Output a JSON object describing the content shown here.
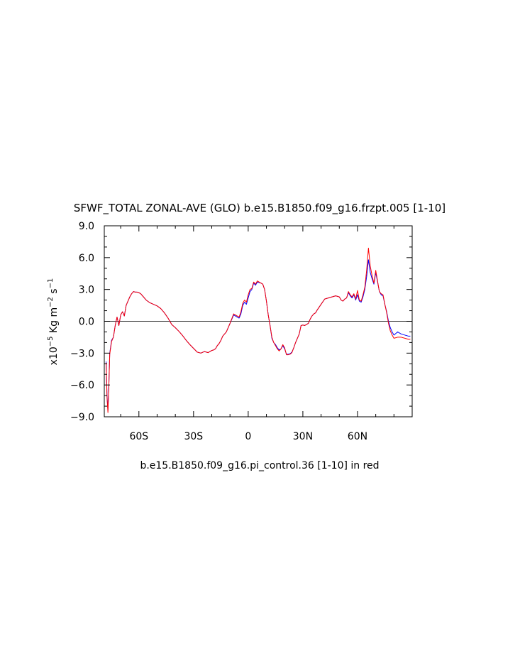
{
  "chart_data": {
    "type": "line",
    "title": "SFWF_TOTAL ZONAL-AVE (GLO) b.e15.B1850.f09_g16.frzpt.005 [1-10]",
    "xlabel": "b.e15.B1850.f09_g16.pi_control.36 [1-10] in red",
    "ylabel": "x10^-5 Kg m^-2 s^-1",
    "ylabel_parts": {
      "pre": "x10",
      "exp1": "−5",
      "mid1": " Kg m",
      "exp2": "−2",
      "mid2": " s",
      "exp3": "−1"
    },
    "xlim": [
      -79,
      90
    ],
    "ylim": [
      -9.0,
      9.0
    ],
    "x_ticks": [
      {
        "value": -60,
        "label": "60S"
      },
      {
        "value": -30,
        "label": "30S"
      },
      {
        "value": 0,
        "label": "0"
      },
      {
        "value": 30,
        "label": "30N"
      },
      {
        "value": 60,
        "label": "60N"
      }
    ],
    "y_ticks": [
      {
        "value": 9.0,
        "label": "9.0"
      },
      {
        "value": 6.0,
        "label": "6.0"
      },
      {
        "value": 3.0,
        "label": "3.0"
      },
      {
        "value": 0.0,
        "label": "0.0"
      },
      {
        "value": -3.0,
        "label": "−3.0"
      },
      {
        "value": -6.0,
        "label": "−6.0"
      },
      {
        "value": -9.0,
        "label": "−9.0"
      }
    ],
    "reference_line": 0.0,
    "series": [
      {
        "color": "#0000ff",
        "x": [
          -78,
          -77.5,
          -77,
          -76.5,
          -76,
          -75,
          -74,
          -73,
          -72,
          -71,
          -70,
          -69,
          -68,
          -67,
          -66,
          -65,
          -64,
          -63,
          -62,
          -61,
          -60,
          -59,
          -58,
          -56,
          -54,
          -52,
          -50,
          -48,
          -46,
          -44,
          -42,
          -40,
          -38,
          -36,
          -34,
          -32,
          -30,
          -28,
          -26,
          -24,
          -22,
          -20,
          -19,
          -18,
          -17,
          -16,
          -15,
          -14,
          -12,
          -10,
          -8,
          -6,
          -5,
          -4,
          -3,
          -2,
          -1,
          0,
          1,
          2,
          3,
          4,
          5,
          6,
          7,
          8,
          9,
          10,
          11,
          12,
          13,
          14,
          15,
          16,
          17,
          18,
          19,
          20,
          21,
          22,
          23,
          24,
          25,
          26,
          27,
          28,
          29,
          30,
          31,
          32,
          33,
          34,
          35,
          36,
          37,
          38,
          40,
          42,
          44,
          46,
          48,
          50,
          51,
          52,
          53,
          54,
          55,
          56,
          57,
          58,
          59,
          60,
          61,
          62,
          63,
          64,
          65,
          66,
          67,
          68,
          69,
          70,
          71,
          72,
          73,
          74,
          75,
          76,
          77,
          78,
          79,
          80,
          82,
          84,
          86,
          88,
          89
        ],
        "y": [
          -3.8,
          -7.0,
          -8.4,
          -6.0,
          -3.0,
          -1.8,
          -1.5,
          -0.4,
          0.4,
          -0.4,
          0.6,
          0.9,
          0.5,
          1.5,
          1.9,
          2.3,
          2.6,
          2.8,
          2.75,
          2.75,
          2.7,
          2.6,
          2.4,
          2.0,
          1.75,
          1.6,
          1.45,
          1.2,
          0.8,
          0.3,
          -0.3,
          -0.6,
          -0.95,
          -1.35,
          -1.8,
          -2.2,
          -2.55,
          -2.9,
          -3.0,
          -2.85,
          -2.95,
          -2.75,
          -2.7,
          -2.6,
          -2.3,
          -2.1,
          -1.8,
          -1.4,
          -1.0,
          -0.2,
          0.6,
          0.4,
          0.3,
          0.7,
          1.5,
          1.8,
          1.6,
          2.2,
          2.8,
          3.0,
          3.6,
          3.4,
          3.7,
          3.65,
          3.6,
          3.5,
          3.0,
          1.9,
          0.6,
          -0.4,
          -1.6,
          -2.0,
          -2.2,
          -2.5,
          -2.7,
          -2.6,
          -2.3,
          -2.6,
          -3.1,
          -3.1,
          -3.05,
          -2.9,
          -2.5,
          -2.0,
          -1.6,
          -1.2,
          -0.4,
          -0.35,
          -0.4,
          -0.3,
          -0.2,
          0.2,
          0.5,
          0.7,
          0.8,
          1.1,
          1.6,
          2.1,
          2.2,
          2.3,
          2.4,
          2.3,
          2.0,
          1.9,
          2.1,
          2.2,
          2.7,
          2.4,
          2.2,
          2.5,
          2.0,
          2.5,
          1.9,
          1.8,
          2.3,
          3.0,
          4.2,
          5.8,
          4.6,
          4.0,
          3.5,
          4.6,
          3.7,
          2.8,
          2.5,
          2.4,
          1.6,
          0.9,
          0.0,
          -0.6,
          -1.0,
          -1.3,
          -1.0,
          -1.2,
          -1.3,
          -1.4,
          -1.4
        ]
      },
      {
        "color": "#ff0000",
        "x": [
          -78,
          -77.5,
          -77,
          -76.5,
          -76,
          -75,
          -74,
          -73,
          -72,
          -71,
          -70,
          -69,
          -68,
          -67,
          -66,
          -65,
          -64,
          -63,
          -62,
          -61,
          -60,
          -59,
          -58,
          -56,
          -54,
          -52,
          -50,
          -48,
          -46,
          -44,
          -42,
          -40,
          -38,
          -36,
          -34,
          -32,
          -30,
          -28,
          -26,
          -24,
          -22,
          -20,
          -19,
          -18,
          -17,
          -16,
          -15,
          -14,
          -12,
          -10,
          -8,
          -6,
          -5,
          -4,
          -3,
          -2,
          -1,
          0,
          1,
          2,
          3,
          4,
          5,
          6,
          7,
          8,
          9,
          10,
          11,
          12,
          13,
          14,
          15,
          16,
          17,
          18,
          19,
          20,
          21,
          22,
          23,
          24,
          25,
          26,
          27,
          28,
          29,
          30,
          31,
          32,
          33,
          34,
          35,
          36,
          37,
          38,
          40,
          42,
          44,
          46,
          48,
          50,
          51,
          52,
          53,
          54,
          55,
          56,
          57,
          58,
          59,
          60,
          61,
          62,
          63,
          64,
          65,
          66,
          67,
          68,
          69,
          70,
          71,
          72,
          73,
          74,
          75,
          76,
          77,
          78,
          79,
          80,
          82,
          84,
          86,
          88,
          89
        ],
        "y": [
          -3.9,
          -7.2,
          -8.6,
          -6.1,
          -3.1,
          -1.9,
          -1.5,
          -0.4,
          0.4,
          -0.4,
          0.6,
          0.9,
          0.5,
          1.5,
          1.9,
          2.3,
          2.6,
          2.8,
          2.75,
          2.75,
          2.7,
          2.6,
          2.4,
          2.0,
          1.75,
          1.6,
          1.45,
          1.2,
          0.8,
          0.3,
          -0.3,
          -0.6,
          -0.95,
          -1.35,
          -1.8,
          -2.2,
          -2.55,
          -2.9,
          -3.0,
          -2.85,
          -2.95,
          -2.75,
          -2.7,
          -2.6,
          -2.3,
          -2.1,
          -1.8,
          -1.4,
          -1.0,
          -0.2,
          0.7,
          0.5,
          0.4,
          0.9,
          1.7,
          2.0,
          1.8,
          2.5,
          3.0,
          3.1,
          3.7,
          3.5,
          3.8,
          3.7,
          3.6,
          3.5,
          3.0,
          1.9,
          0.6,
          -0.4,
          -1.5,
          -2.0,
          -2.3,
          -2.6,
          -2.8,
          -2.6,
          -2.2,
          -2.5,
          -3.15,
          -3.15,
          -3.1,
          -2.95,
          -2.5,
          -2.0,
          -1.6,
          -1.2,
          -0.4,
          -0.35,
          -0.4,
          -0.3,
          -0.2,
          0.2,
          0.5,
          0.7,
          0.8,
          1.1,
          1.6,
          2.1,
          2.2,
          2.3,
          2.4,
          2.3,
          2.0,
          1.9,
          2.1,
          2.2,
          2.8,
          2.5,
          2.3,
          2.6,
          2.1,
          2.9,
          2.0,
          1.9,
          2.5,
          3.2,
          4.8,
          6.9,
          5.2,
          4.3,
          3.6,
          4.8,
          3.8,
          2.8,
          2.6,
          2.5,
          1.6,
          0.8,
          -0.2,
          -0.9,
          -1.3,
          -1.6,
          -1.5,
          -1.5,
          -1.6,
          -1.7,
          -1.7
        ]
      }
    ]
  }
}
